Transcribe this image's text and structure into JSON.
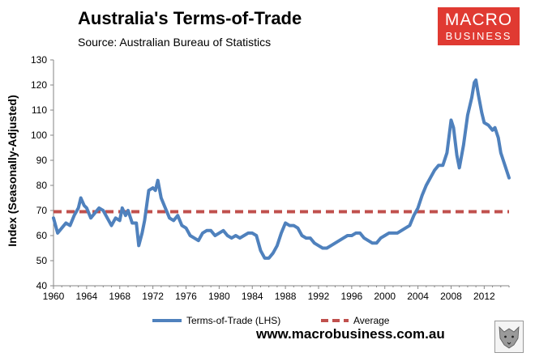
{
  "header": {
    "title": "Australia's Terms-of-Trade",
    "subtitle": "Source: Australian Bureau of Statistics"
  },
  "logo": {
    "line1": "MACRO",
    "line2": "BUSINESS"
  },
  "footer": {
    "url": "www.macrobusiness.com.au"
  },
  "colors": {
    "series": "#4f81bd",
    "average": "#c0504d",
    "logo": "#e03a32"
  },
  "chart_data": {
    "type": "line",
    "title": "Australia's Terms-of-Trade",
    "ylabel": "Index (Seasonally-Adjusted)",
    "xlim": [
      1960,
      2015
    ],
    "ylim": [
      40,
      130
    ],
    "yticks": [
      40,
      50,
      60,
      70,
      80,
      90,
      100,
      110,
      120,
      130
    ],
    "xticks": [
      1960,
      1964,
      1968,
      1972,
      1976,
      1980,
      1984,
      1988,
      1992,
      1996,
      2000,
      2004,
      2008,
      2012
    ],
    "grid": false,
    "legend_position": "bottom",
    "series": [
      {
        "name": "Terms-of-Trade (LHS)",
        "style": "solid",
        "points": [
          [
            1960.0,
            67
          ],
          [
            1960.5,
            61
          ],
          [
            1961.0,
            63
          ],
          [
            1961.5,
            65
          ],
          [
            1962.0,
            64
          ],
          [
            1962.5,
            68
          ],
          [
            1963.0,
            71
          ],
          [
            1963.3,
            75
          ],
          [
            1963.7,
            72
          ],
          [
            1964.0,
            71
          ],
          [
            1964.5,
            67
          ],
          [
            1965.0,
            69
          ],
          [
            1965.5,
            71
          ],
          [
            1966.0,
            70
          ],
          [
            1966.5,
            67
          ],
          [
            1967.0,
            64
          ],
          [
            1967.5,
            67
          ],
          [
            1968.0,
            66
          ],
          [
            1968.3,
            71
          ],
          [
            1968.7,
            68
          ],
          [
            1969.0,
            70
          ],
          [
            1969.5,
            65
          ],
          [
            1970.0,
            65
          ],
          [
            1970.3,
            56
          ],
          [
            1970.7,
            61
          ],
          [
            1971.0,
            66
          ],
          [
            1971.5,
            78
          ],
          [
            1972.0,
            79
          ],
          [
            1972.3,
            78
          ],
          [
            1972.6,
            82
          ],
          [
            1973.0,
            75
          ],
          [
            1973.5,
            71
          ],
          [
            1974.0,
            67
          ],
          [
            1974.5,
            66
          ],
          [
            1975.0,
            68
          ],
          [
            1975.5,
            64
          ],
          [
            1976.0,
            63
          ],
          [
            1976.5,
            60
          ],
          [
            1977.0,
            59
          ],
          [
            1977.5,
            58
          ],
          [
            1978.0,
            61
          ],
          [
            1978.5,
            62
          ],
          [
            1979.0,
            62
          ],
          [
            1979.5,
            60
          ],
          [
            1980.0,
            61
          ],
          [
            1980.5,
            62
          ],
          [
            1981.0,
            60
          ],
          [
            1981.5,
            59
          ],
          [
            1982.0,
            60
          ],
          [
            1982.5,
            59
          ],
          [
            1983.0,
            60
          ],
          [
            1983.5,
            61
          ],
          [
            1984.0,
            61
          ],
          [
            1984.5,
            60
          ],
          [
            1985.0,
            54
          ],
          [
            1985.5,
            51
          ],
          [
            1986.0,
            51
          ],
          [
            1986.5,
            53
          ],
          [
            1987.0,
            56
          ],
          [
            1987.5,
            61
          ],
          [
            1988.0,
            65
          ],
          [
            1988.5,
            64
          ],
          [
            1989.0,
            64
          ],
          [
            1989.5,
            63
          ],
          [
            1990.0,
            60
          ],
          [
            1990.5,
            59
          ],
          [
            1991.0,
            59
          ],
          [
            1991.5,
            57
          ],
          [
            1992.0,
            56
          ],
          [
            1992.5,
            55
          ],
          [
            1993.0,
            55
          ],
          [
            1993.5,
            56
          ],
          [
            1994.0,
            57
          ],
          [
            1994.5,
            58
          ],
          [
            1995.0,
            59
          ],
          [
            1995.5,
            60
          ],
          [
            1996.0,
            60
          ],
          [
            1996.5,
            61
          ],
          [
            1997.0,
            61
          ],
          [
            1997.5,
            59
          ],
          [
            1998.0,
            58
          ],
          [
            1998.5,
            57
          ],
          [
            1999.0,
            57
          ],
          [
            1999.5,
            59
          ],
          [
            2000.0,
            60
          ],
          [
            2000.5,
            61
          ],
          [
            2001.0,
            61
          ],
          [
            2001.5,
            61
          ],
          [
            2002.0,
            62
          ],
          [
            2002.5,
            63
          ],
          [
            2003.0,
            64
          ],
          [
            2003.5,
            68
          ],
          [
            2004.0,
            71
          ],
          [
            2004.5,
            76
          ],
          [
            2005.0,
            80
          ],
          [
            2005.5,
            83
          ],
          [
            2006.0,
            86
          ],
          [
            2006.5,
            88
          ],
          [
            2007.0,
            88
          ],
          [
            2007.5,
            93
          ],
          [
            2008.0,
            106
          ],
          [
            2008.3,
            103
          ],
          [
            2008.7,
            92
          ],
          [
            2009.0,
            87
          ],
          [
            2009.5,
            96
          ],
          [
            2010.0,
            108
          ],
          [
            2010.5,
            115
          ],
          [
            2010.8,
            121
          ],
          [
            2011.0,
            122
          ],
          [
            2011.3,
            116
          ],
          [
            2011.7,
            109
          ],
          [
            2012.0,
            105
          ],
          [
            2012.5,
            104
          ],
          [
            2013.0,
            102
          ],
          [
            2013.3,
            103
          ],
          [
            2013.7,
            99
          ],
          [
            2014.0,
            93
          ],
          [
            2014.5,
            88
          ],
          [
            2015.0,
            83
          ]
        ]
      },
      {
        "name": "Average",
        "style": "dashed",
        "points": [
          [
            1960.0,
            69.5
          ],
          [
            2015.0,
            69.5
          ]
        ]
      }
    ]
  }
}
